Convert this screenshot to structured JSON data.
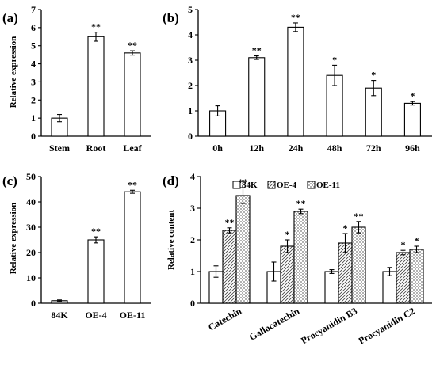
{
  "chart_data": [
    {
      "panel_label": "(a)",
      "type": "bar",
      "categories": [
        "Stem",
        "Root",
        "Leaf"
      ],
      "values": [
        1.0,
        5.5,
        4.6
      ],
      "errors": [
        0.2,
        0.25,
        0.12
      ],
      "significance": [
        "",
        "**",
        "**"
      ],
      "ylabel": "Relative expression",
      "ylim": [
        0,
        7
      ],
      "yticks": [
        "0",
        "1",
        "2",
        "3",
        "4",
        "5",
        "6",
        "7"
      ],
      "xlabel": "",
      "grid": false
    },
    {
      "panel_label": "(b)",
      "type": "bar",
      "categories": [
        "0h",
        "12h",
        "24h",
        "48h",
        "72h",
        "96h"
      ],
      "values": [
        1.0,
        3.1,
        4.3,
        2.4,
        1.9,
        1.3
      ],
      "errors": [
        0.2,
        0.07,
        0.17,
        0.4,
        0.3,
        0.07
      ],
      "significance": [
        "",
        "**",
        "**",
        "*",
        "*",
        "*"
      ],
      "ylabel": "",
      "ylim": [
        0,
        5
      ],
      "yticks": [
        "0",
        "1",
        "2",
        "3",
        "4",
        "5"
      ],
      "xlabel": "",
      "grid": false
    },
    {
      "panel_label": "(c)",
      "type": "bar",
      "categories": [
        "84K",
        "OE-4",
        "OE-11"
      ],
      "values": [
        1.0,
        25.0,
        44.0
      ],
      "errors": [
        0.3,
        1.2,
        0.6
      ],
      "significance": [
        "",
        "**",
        "**"
      ],
      "ylabel": "Relative expression",
      "ylim": [
        0,
        50
      ],
      "yticks": [
        "0",
        "10",
        "20",
        "30",
        "40",
        "50"
      ],
      "xlabel": "",
      "grid": false
    },
    {
      "panel_label": "(d)",
      "type": "bar",
      "categories": [
        "Catechin",
        "Gallocatechin",
        "Procyanidin B3",
        "Procyanidin C2"
      ],
      "series": [
        {
          "name": "84K",
          "values": [
            1.0,
            1.0,
            1.0,
            1.0
          ],
          "errors": [
            0.18,
            0.3,
            0.06,
            0.13
          ],
          "significance": [
            "",
            "",
            "",
            ""
          ],
          "pattern": "plain"
        },
        {
          "name": "OE-4",
          "values": [
            2.3,
            1.8,
            1.9,
            1.6
          ],
          "errors": [
            0.08,
            0.2,
            0.3,
            0.07
          ],
          "significance": [
            "**",
            "*",
            "*",
            "*"
          ],
          "pattern": "hatch"
        },
        {
          "name": "OE-11",
          "values": [
            3.4,
            2.9,
            2.4,
            1.7
          ],
          "errors": [
            0.25,
            0.07,
            0.18,
            0.1
          ],
          "significance": [
            "**",
            "**",
            "**",
            "*"
          ],
          "pattern": "dots"
        }
      ],
      "ylabel": "Relative content",
      "ylim": [
        0,
        4
      ],
      "yticks": [
        "0",
        "1",
        "2",
        "3",
        "4"
      ],
      "legend_position": "top",
      "xlabel": "",
      "grid": false
    }
  ],
  "colors": {
    "bar_fill": "#ffffff",
    "stroke": "#000000",
    "hatch": "#555555"
  }
}
